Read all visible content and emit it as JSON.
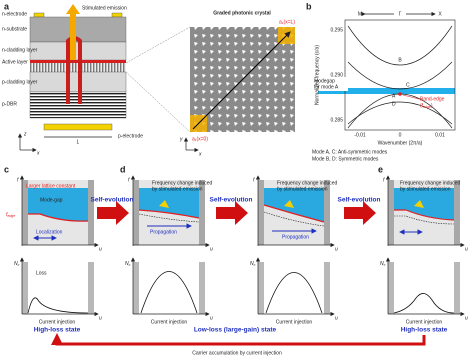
{
  "panel_a": {
    "label": "a",
    "layers": [
      "n-electrode",
      "n-substrate",
      "n-cladding layer",
      "Active layer",
      "p-cladding layer",
      "p-DBR",
      "p-electrode"
    ],
    "length": "L",
    "axis_x": "x",
    "axis_z": "z",
    "emission": "Stimulated emission",
    "crystal_title": "Graded photonic crystal",
    "lattice_end": "a₁(x=L)",
    "lattice_start": "a₁(x=0)",
    "crystal_axis_x": "x",
    "crystal_axis_y": "y"
  },
  "panel_b": {
    "label": "b",
    "directions": [
      "M",
      "Γ",
      "X"
    ],
    "y_label": "Normalized frequency (c/a)",
    "y_ticks": [
      "0.295",
      "0.290",
      "0.285"
    ],
    "x_ticks": [
      "-0.01",
      "0",
      "0.01"
    ],
    "x_label": "Wavenumber (2π/a)",
    "modes": [
      "B",
      "C",
      "A",
      "D"
    ],
    "modegap": [
      "Modegap",
      "for mode A"
    ],
    "band_edge": "Band-edge",
    "band_edge_symbol": {
      "open": "(f",
      "subscript": "edge",
      "close": ")"
    },
    "captions": [
      "Mode A, C: Anti-symmetric modes",
      "Mode B, D: Symmetric modes"
    ]
  },
  "panel_c": {
    "label": "c",
    "f_axis": "f",
    "u_axis": "u",
    "lattice": "Larger lattice constant",
    "modegap": "Mode-gap",
    "f_edge": {
      "symbol": "f",
      "subscript": "edge"
    },
    "localization": "Localization",
    "nc_axis": {
      "symbol": "N",
      "subscript": "c"
    },
    "loss": "Loss",
    "u_axis_bottom": "u",
    "injection": "Current injection",
    "state": "High-loss state"
  },
  "panel_d": {
    "label": "d",
    "f_axis": "f",
    "u_axis": "u",
    "freq_change": [
      "Frequency change induced",
      "by stimulated emission"
    ],
    "propagation": "Propagation",
    "nc_axis": {
      "symbol": "N",
      "subscript": "c"
    },
    "u_axis_bottom": "u",
    "injection": "Current injection"
  },
  "panel_d2": {
    "f_axis": "f",
    "u_axis": "u",
    "freq_change": [
      "Frequency change induced",
      "by stimulated emission"
    ],
    "propagation": "Propagation",
    "nc_axis": {
      "symbol": "N",
      "subscript": "c"
    },
    "u_axis_bottom": "u",
    "injection": "Current injection",
    "state": "Low-loss (large-gain) state"
  },
  "panel_e": {
    "label": "e",
    "f_axis": "f",
    "u_axis": "u",
    "freq_change": [
      "Frequency change induced",
      "by stimulated emission"
    ],
    "nc_axis": {
      "symbol": "N",
      "subscript": "c"
    },
    "u_axis_bottom": "u",
    "injection": "Current injection",
    "state": "High-loss state"
  },
  "self_evolution": [
    "Self-evolution",
    "Self-evolution",
    "Self-evolution"
  ],
  "loop": "Carrier accumulation by current injection"
}
